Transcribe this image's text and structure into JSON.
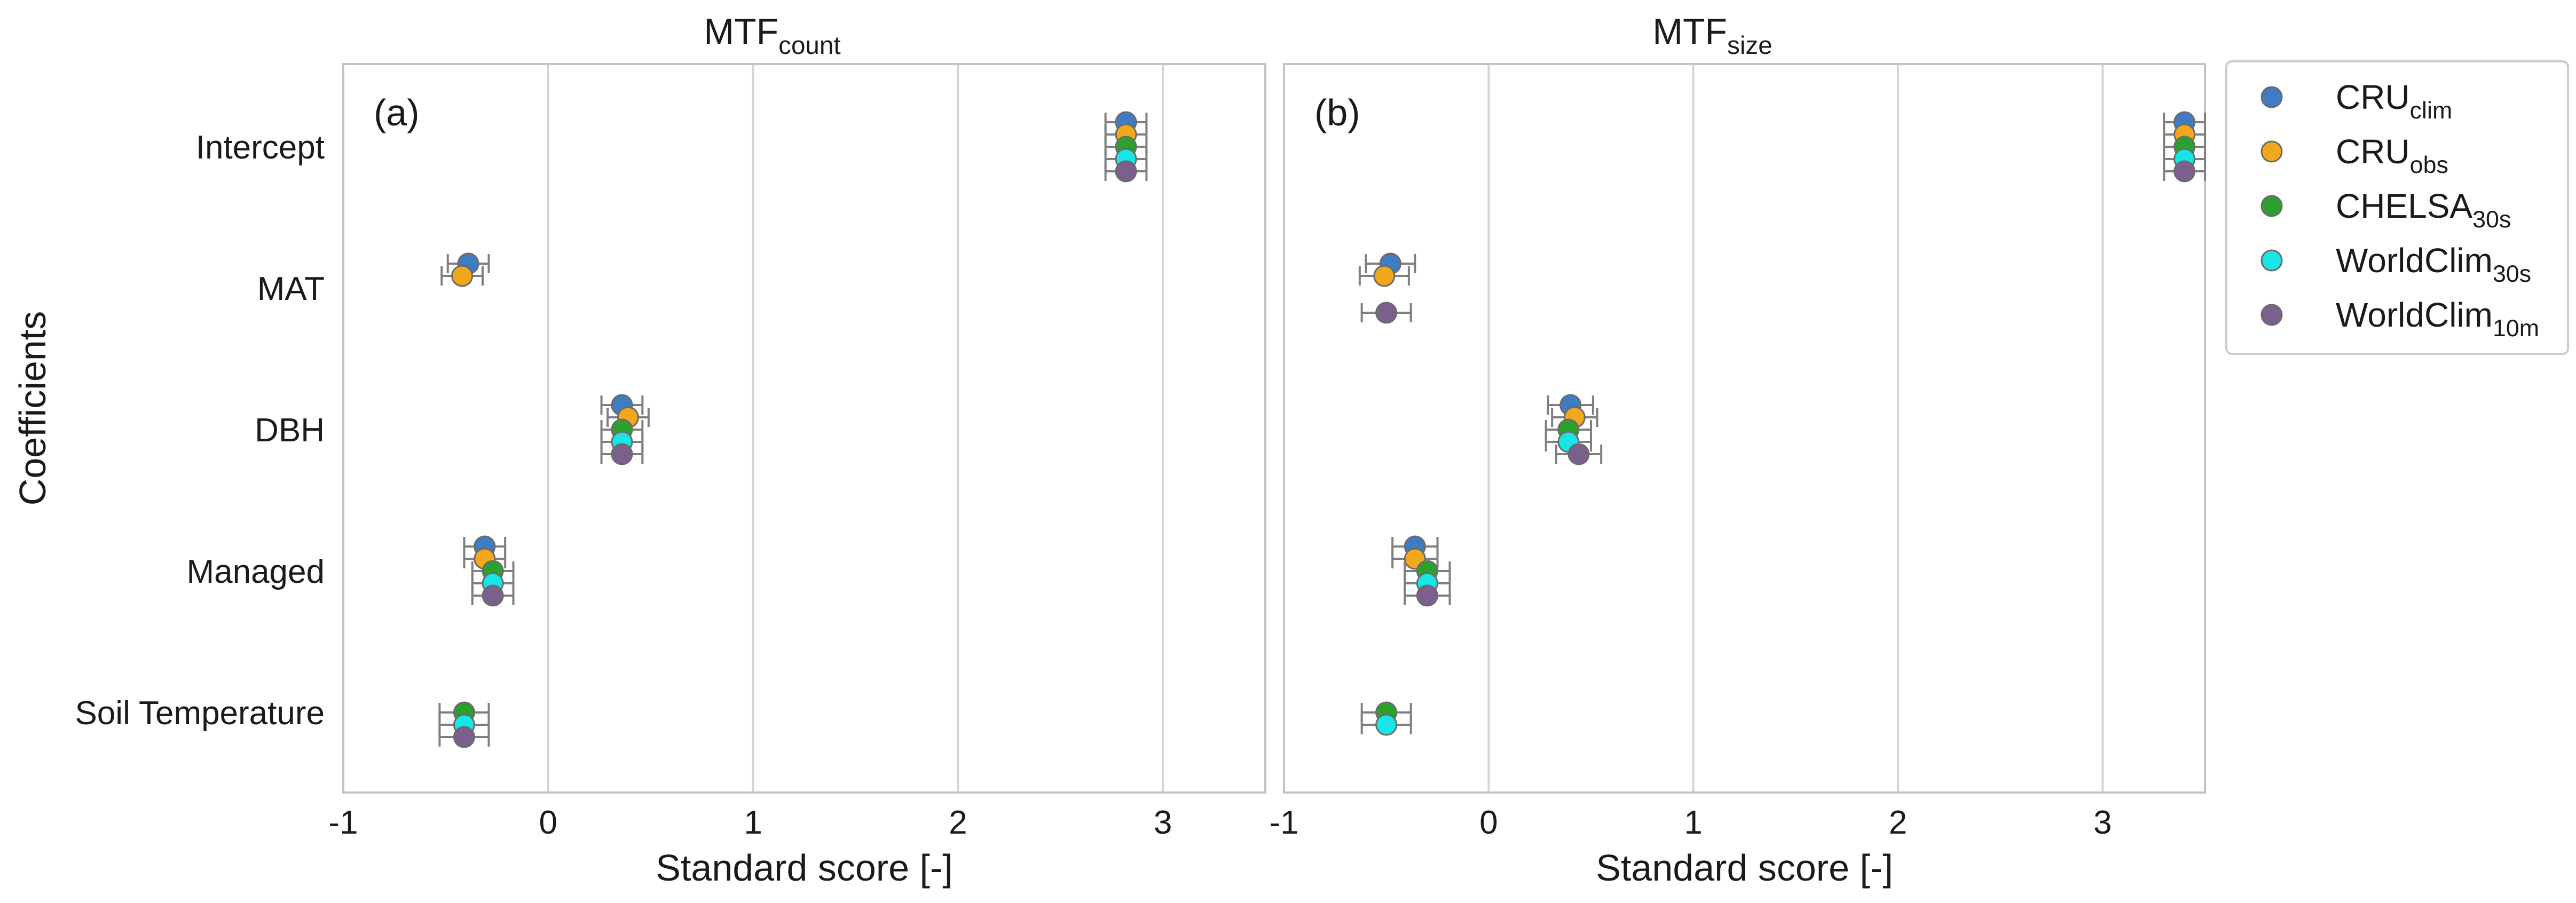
{
  "chart_data": {
    "type": "scatter",
    "ylabel": "Coefficients",
    "categories": [
      "Intercept",
      "MAT",
      "DBH",
      "Managed",
      "Soil Temperature"
    ],
    "series_styles": [
      {
        "key": "CRU_clim",
        "base": "CRU",
        "sub": "clim",
        "color": "#3e7cc4"
      },
      {
        "key": "CRU_obs",
        "base": "CRU",
        "sub": "obs",
        "color": "#f2a81d"
      },
      {
        "key": "CHELSA_30s",
        "base": "CHELSA",
        "sub": "30s",
        "color": "#2ca02c"
      },
      {
        "key": "WorldClim_30s",
        "base": "WorldClim",
        "sub": "30s",
        "color": "#17e6e6"
      },
      {
        "key": "WorldClim_10m",
        "base": "WorldClim",
        "sub": "10m",
        "color": "#7b5f8c"
      }
    ],
    "legend_position": "upper-right-outside",
    "grid": true,
    "panels": [
      {
        "id": "count",
        "title_base": "MTF",
        "title_sub": "count",
        "panel_label": "(a)",
        "xlabel": "Standard score [-]",
        "xlim": [
          -1,
          3.5
        ],
        "xticks": [
          "-1",
          "0",
          "1",
          "2",
          "3"
        ],
        "series": [
          {
            "name": "CRU_clim",
            "values": [
              2.82,
              -0.39,
              0.36,
              -0.31,
              null
            ],
            "err": [
              0.1,
              0.1,
              0.1,
              0.1,
              null
            ]
          },
          {
            "name": "CRU_obs",
            "values": [
              2.82,
              -0.42,
              0.39,
              -0.31,
              null
            ],
            "err": [
              0.1,
              0.1,
              0.1,
              0.1,
              null
            ]
          },
          {
            "name": "CHELSA_30s",
            "values": [
              2.82,
              null,
              0.36,
              -0.27,
              -0.41
            ],
            "err": [
              0.1,
              null,
              0.1,
              0.1,
              0.12
            ]
          },
          {
            "name": "WorldClim_30s",
            "values": [
              2.82,
              null,
              0.36,
              -0.27,
              -0.41
            ],
            "err": [
              0.1,
              null,
              0.1,
              0.1,
              0.12
            ]
          },
          {
            "name": "WorldClim_10m",
            "values": [
              2.82,
              null,
              0.36,
              -0.27,
              -0.41
            ],
            "err": [
              0.1,
              null,
              0.1,
              0.1,
              0.12
            ]
          }
        ]
      },
      {
        "id": "size",
        "title_base": "MTF",
        "title_sub": "size",
        "panel_label": "(b)",
        "xlabel": "Standard score [-]",
        "xlim": [
          -1,
          3.5
        ],
        "xticks": [
          "-1",
          "0",
          "1",
          "2",
          "3"
        ],
        "series": [
          {
            "name": "CRU_clim",
            "values": [
              3.4,
              -0.48,
              0.4,
              -0.36,
              null
            ],
            "err": [
              0.1,
              0.12,
              0.11,
              0.11,
              null
            ]
          },
          {
            "name": "CRU_obs",
            "values": [
              3.4,
              -0.51,
              0.42,
              -0.36,
              null
            ],
            "err": [
              0.1,
              0.12,
              0.11,
              0.11,
              null
            ]
          },
          {
            "name": "CHELSA_30s",
            "values": [
              3.4,
              null,
              0.39,
              -0.3,
              -0.5
            ],
            "err": [
              0.1,
              null,
              0.11,
              0.11,
              0.12
            ]
          },
          {
            "name": "WorldClim_30s",
            "values": [
              3.4,
              null,
              0.39,
              -0.3,
              -0.5
            ],
            "err": [
              0.1,
              null,
              0.11,
              0.11,
              0.12
            ]
          },
          {
            "name": "WorldClim_10m",
            "values": [
              3.4,
              -0.5,
              0.44,
              -0.3,
              null
            ],
            "err": [
              0.1,
              0.12,
              0.11,
              0.11,
              null
            ]
          }
        ]
      }
    ]
  }
}
